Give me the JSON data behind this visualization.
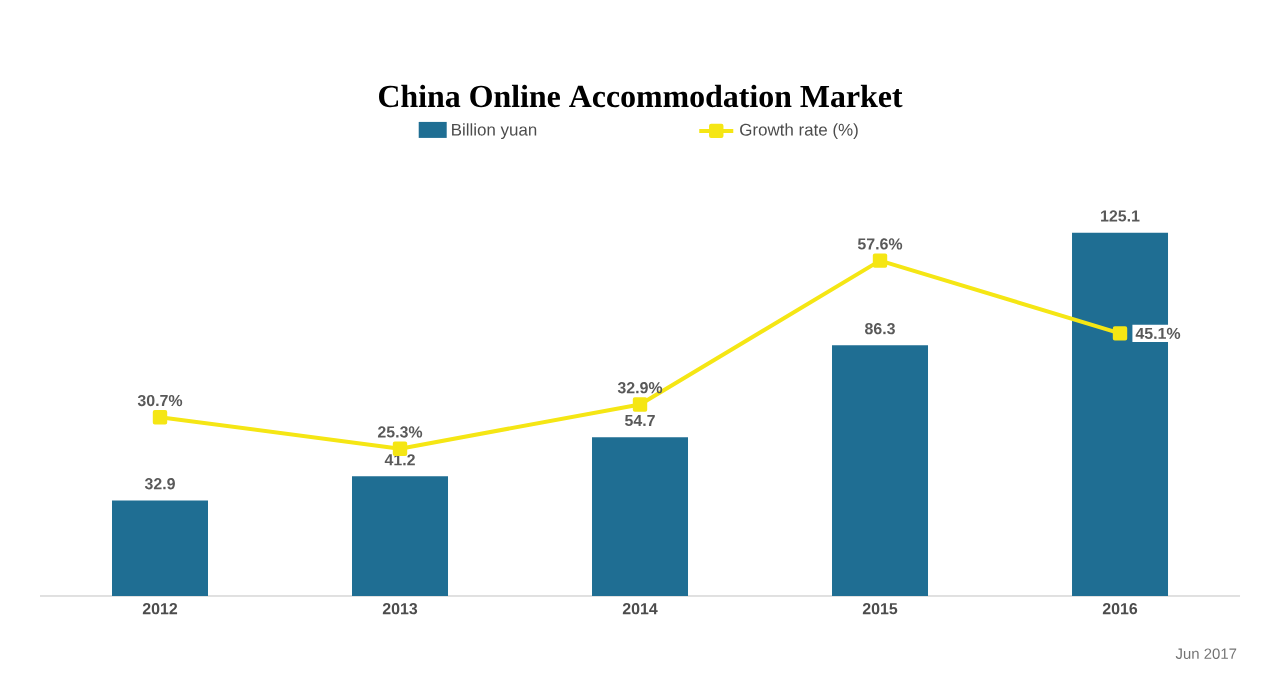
{
  "chart_data": {
    "type": "bar",
    "title": "China Online Accommodation Market",
    "categories": [
      "2012",
      "2013",
      "2014",
      "2015",
      "2016"
    ],
    "series": [
      {
        "name": "Billion yuan",
        "color": "#1f6e93",
        "values": [
          32.9,
          41.2,
          54.7,
          86.3,
          125.1
        ],
        "value_labels": [
          "32.9",
          "41.2",
          "54.7",
          "86.3",
          "125.1"
        ]
      },
      {
        "name": "Growth rate (%)",
        "type": "line",
        "axis": "y2",
        "color": "#f5e614",
        "values": [
          30.7,
          25.3,
          32.9,
          57.6,
          45.1
        ],
        "value_labels": [
          "30.7%",
          "25.3%",
          "32.9%",
          "57.6%",
          "45.1%"
        ]
      }
    ],
    "tick_labels": "x",
    "legend": "top",
    "marker": "square",
    "grid": false,
    "annotations": [
      "Jun 2017"
    ]
  }
}
